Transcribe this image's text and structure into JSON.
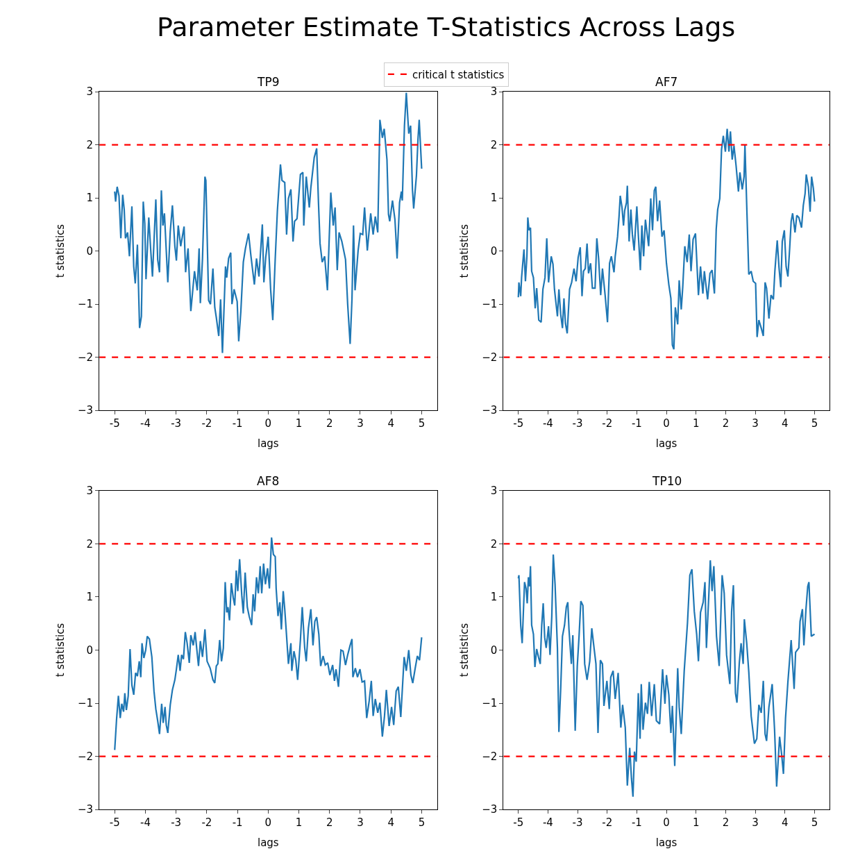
{
  "chart_data": [
    {
      "type": "line",
      "title": "TP9",
      "xlabel": "lags",
      "ylabel": "t statistics",
      "annotations": [
        "Parameter Estimate T-Statistics Across Lags"
      ],
      "legend": "top",
      "line_style": "solid",
      "xlim": [
        -5.5,
        5.5
      ],
      "ylim": [
        -3,
        3
      ],
      "xticks": [
        {
          "value": -5,
          "label": "-5"
        },
        {
          "value": -4,
          "label": "-4"
        },
        {
          "value": -3,
          "label": "-3"
        },
        {
          "value": -2,
          "label": "-2"
        },
        {
          "value": -1,
          "label": "-1"
        },
        0,
        1,
        2,
        3,
        4,
        5
      ],
      "yticks": [
        {
          "value": -3,
          "label": "−3"
        },
        {
          "value": -2,
          "label": "−2"
        },
        {
          "value": -1,
          "label": "−1"
        },
        0,
        1,
        2,
        3
      ],
      "ref_lines": [
        {
          "axis": "y",
          "value": 2,
          "label": "critical t statistics",
          "color": "#ff0000",
          "line_style": "dashed"
        },
        {
          "axis": "y",
          "value": -2,
          "color": "#ff0000",
          "line_style": "dashed"
        }
      ],
      "series": [
        {
          "color": "#1f77b4",
          "x": [
            -5.0,
            -4.97,
            -4.92,
            -4.86,
            -4.8,
            -4.74,
            -4.69,
            -4.65,
            -4.58,
            -4.52,
            -4.44,
            -4.38,
            -4.33,
            -4.26,
            -4.19,
            -4.13,
            -4.07,
            -4.02,
            -3.98,
            -3.89,
            -3.83,
            -3.77,
            -3.66,
            -3.6,
            -3.54,
            -3.48,
            -3.43,
            -3.38,
            -3.27,
            -3.19,
            -3.12,
            -3.04,
            -2.99,
            -2.93,
            -2.85,
            -2.74,
            -2.69,
            -2.61,
            -2.52,
            -2.4,
            -2.31,
            -2.25,
            -2.21,
            -2.14,
            -2.06,
            -2.03,
            -1.94,
            -1.88,
            -1.8,
            -1.74,
            -1.69,
            -1.61,
            -1.55,
            -1.49,
            -1.39,
            -1.35,
            -1.29,
            -1.22,
            -1.18,
            -1.11,
            -1.01,
            -0.96,
            -0.89,
            -0.81,
            -0.74,
            -0.64,
            -0.56,
            -0.45,
            -0.38,
            -0.3,
            -0.19,
            -0.14,
            -0.08,
            0.0,
            0.08,
            0.15,
            0.23,
            0.3,
            0.4,
            0.45,
            0.54,
            0.6,
            0.66,
            0.74,
            0.81,
            0.86,
            0.94,
            1.05,
            1.13,
            1.16,
            1.24,
            1.34,
            1.39,
            1.5,
            1.58,
            1.64,
            1.69,
            1.76,
            1.84,
            1.93,
            2.04,
            2.12,
            2.18,
            2.25,
            2.31,
            2.4,
            2.52,
            2.59,
            2.67,
            2.73,
            2.78,
            2.83,
            2.93,
            3.0,
            3.08,
            3.14,
            3.23,
            3.34,
            3.42,
            3.49,
            3.57,
            3.64,
            3.72,
            3.78,
            3.87,
            3.92,
            3.96,
            4.05,
            4.13,
            4.2,
            4.28,
            4.34,
            4.37,
            4.44,
            4.5,
            4.58,
            4.64,
            4.7,
            4.74,
            4.83,
            4.88,
            4.92,
            5.0
          ],
          "values": [
            1.12,
            0.93,
            1.21,
            1.04,
            0.24,
            1.06,
            0.78,
            0.24,
            0.35,
            -0.1,
            0.84,
            -0.29,
            -0.61,
            0.12,
            -1.45,
            -1.23,
            0.93,
            0.52,
            -0.53,
            0.63,
            0.05,
            -0.48,
            0.97,
            -0.16,
            -0.4,
            1.14,
            0.48,
            0.71,
            -0.59,
            0.37,
            0.86,
            0.09,
            -0.18,
            0.48,
            0.09,
            0.46,
            -0.4,
            0.05,
            -1.13,
            -0.38,
            -0.74,
            0.05,
            -0.98,
            -0.14,
            1.4,
            1.33,
            -0.93,
            -1.0,
            -0.33,
            -1.06,
            -1.25,
            -1.6,
            -0.91,
            -1.92,
            -0.29,
            -0.5,
            -0.14,
            -0.03,
            -1.0,
            -0.72,
            -0.95,
            -1.7,
            -1.13,
            -0.21,
            0.05,
            0.33,
            -0.1,
            -0.63,
            -0.14,
            -0.48,
            0.5,
            -0.59,
            -0.12,
            0.27,
            -0.72,
            -1.3,
            -0.14,
            0.76,
            1.63,
            1.33,
            1.29,
            0.31,
            0.99,
            1.16,
            0.18,
            0.56,
            0.61,
            1.44,
            1.48,
            0.48,
            1.4,
            0.82,
            1.19,
            1.76,
            1.93,
            0.89,
            0.14,
            -0.21,
            -0.1,
            -0.74,
            1.1,
            0.48,
            0.82,
            -0.36,
            0.35,
            0.18,
            -0.16,
            -1.0,
            -1.75,
            -0.91,
            0.48,
            -0.74,
            0.01,
            0.33,
            0.31,
            0.82,
            0.01,
            0.71,
            0.31,
            0.65,
            0.35,
            2.47,
            2.13,
            2.3,
            1.72,
            0.69,
            0.56,
            0.95,
            0.59,
            -0.14,
            0.91,
            1.12,
            0.95,
            2.36,
            2.98,
            2.21,
            2.36,
            1.16,
            0.8,
            1.42,
            2.1,
            2.47,
            1.55
          ]
        }
      ]
    },
    {
      "type": "line",
      "title": "AF7",
      "xlabel": "lags",
      "ylabel": "t statistics",
      "line_style": "solid",
      "xlim": [
        -5.5,
        5.5
      ],
      "ylim": [
        -3,
        3
      ],
      "xticks": [
        {
          "value": -5,
          "label": "-5"
        },
        {
          "value": -4,
          "label": "-4"
        },
        {
          "value": -3,
          "label": "-3"
        },
        {
          "value": -2,
          "label": "-2"
        },
        {
          "value": -1,
          "label": "-1"
        },
        0,
        1,
        2,
        3,
        4,
        5
      ],
      "yticks": [
        {
          "value": -3,
          "label": "−3"
        },
        {
          "value": -2,
          "label": "−2"
        },
        {
          "value": -1,
          "label": "−1"
        },
        0,
        1,
        2,
        3
      ],
      "ref_lines": [
        {
          "axis": "y",
          "value": 2,
          "color": "#ff0000",
          "line_style": "dashed"
        },
        {
          "axis": "y",
          "value": -2,
          "color": "#ff0000",
          "line_style": "dashed"
        }
      ],
      "series": [
        {
          "color": "#1f77b4",
          "x": [
            -5.0,
            -4.98,
            -4.92,
            -4.89,
            -4.85,
            -4.81,
            -4.76,
            -4.71,
            -4.68,
            -4.64,
            -4.59,
            -4.55,
            -4.49,
            -4.43,
            -4.38,
            -4.31,
            -4.23,
            -4.17,
            -4.1,
            -4.04,
            -3.98,
            -3.89,
            -3.83,
            -3.78,
            -3.68,
            -3.63,
            -3.57,
            -3.51,
            -3.46,
            -3.41,
            -3.35,
            -3.27,
            -3.2,
            -3.12,
            -3.05,
            -2.98,
            -2.91,
            -2.85,
            -2.8,
            -2.74,
            -2.68,
            -2.63,
            -2.56,
            -2.5,
            -2.41,
            -2.35,
            -2.29,
            -2.22,
            -2.16,
            -2.07,
            -1.99,
            -1.92,
            -1.86,
            -1.77,
            -1.73,
            -1.65,
            -1.6,
            -1.56,
            -1.5,
            -1.45,
            -1.41,
            -1.35,
            -1.32,
            -1.26,
            -1.2,
            -1.15,
            -1.09,
            -1.0,
            -0.95,
            -0.88,
            -0.83,
            -0.77,
            -0.71,
            -0.6,
            -0.53,
            -0.47,
            -0.41,
            -0.36,
            -0.3,
            -0.23,
            -0.15,
            -0.08,
            0.0,
            0.08,
            0.15,
            0.2,
            0.25,
            0.3,
            0.38,
            0.43,
            0.5,
            0.55,
            0.62,
            0.7,
            0.77,
            0.83,
            0.9,
            0.98,
            1.08,
            1.15,
            1.23,
            1.28,
            1.39,
            1.47,
            1.54,
            1.62,
            1.68,
            1.73,
            1.8,
            1.86,
            1.92,
            1.99,
            2.05,
            2.11,
            2.16,
            2.22,
            2.28,
            2.35,
            2.43,
            2.48,
            2.56,
            2.62,
            2.65,
            2.71,
            2.78,
            2.86,
            2.93,
            3.01,
            3.06,
            3.12,
            3.21,
            3.27,
            3.33,
            3.38,
            3.46,
            3.53,
            3.61,
            3.66,
            3.74,
            3.8,
            3.86,
            3.91,
            3.98,
            4.04,
            4.1,
            4.16,
            4.21,
            4.26,
            4.34,
            4.4,
            4.47,
            4.56,
            4.62,
            4.68,
            4.72,
            4.79,
            4.85,
            4.9,
            4.96,
            5.0
          ],
          "values": [
            -0.87,
            -0.59,
            -0.85,
            -0.5,
            -0.23,
            0.03,
            -0.57,
            -0.1,
            0.63,
            0.39,
            0.44,
            -0.38,
            -0.5,
            -1.08,
            -0.7,
            -1.3,
            -1.34,
            -0.72,
            -0.5,
            0.24,
            -0.59,
            -0.1,
            -0.25,
            -0.72,
            -1.23,
            -0.72,
            -1.19,
            -1.45,
            -0.89,
            -1.36,
            -1.55,
            -0.72,
            -0.59,
            -0.33,
            -0.57,
            -0.12,
            0.07,
            -0.85,
            -0.38,
            -0.33,
            0.14,
            -0.42,
            -0.23,
            -0.7,
            -0.7,
            0.24,
            -0.14,
            -0.83,
            -0.33,
            -0.83,
            -1.34,
            -0.23,
            -0.1,
            -0.4,
            -0.1,
            0.27,
            0.65,
            1.04,
            0.82,
            0.48,
            0.76,
            0.91,
            1.23,
            0.18,
            0.78,
            0.31,
            0.01,
            0.84,
            0.31,
            -0.36,
            0.48,
            -0.1,
            0.59,
            0.09,
            0.99,
            0.39,
            1.14,
            1.21,
            0.56,
            0.95,
            0.27,
            0.39,
            -0.23,
            -0.63,
            -0.89,
            -1.77,
            -1.85,
            -1.06,
            -1.38,
            -0.55,
            -1.1,
            -0.68,
            0.09,
            -0.21,
            0.31,
            -0.38,
            0.22,
            0.33,
            -0.83,
            -0.29,
            -0.8,
            -0.38,
            -0.91,
            -0.42,
            -0.36,
            -0.8,
            0.41,
            0.78,
            0.99,
            1.91,
            2.17,
            1.87,
            2.3,
            1.87,
            2.25,
            1.72,
            1.98,
            1.61,
            1.12,
            1.48,
            1.16,
            1.4,
            2.0,
            0.86,
            -0.44,
            -0.38,
            -0.57,
            -0.61,
            -1.62,
            -1.3,
            -1.47,
            -1.6,
            -0.59,
            -0.7,
            -1.27,
            -0.83,
            -0.91,
            -0.38,
            0.2,
            -0.31,
            -0.68,
            0.18,
            0.39,
            -0.29,
            -0.48,
            0.05,
            0.56,
            0.71,
            0.35,
            0.67,
            0.63,
            0.44,
            0.86,
            1.08,
            1.44,
            1.21,
            0.74,
            1.4,
            1.18,
            0.93
          ]
        }
      ]
    },
    {
      "type": "line",
      "title": "AF8",
      "xlabel": "lags",
      "ylabel": "t statistics",
      "line_style": "solid",
      "xlim": [
        -5.5,
        5.5
      ],
      "ylim": [
        -3,
        3
      ],
      "xticks": [
        {
          "value": -5,
          "label": "-5"
        },
        {
          "value": -4,
          "label": "-4"
        },
        {
          "value": -3,
          "label": "-3"
        },
        {
          "value": -2,
          "label": "-2"
        },
        {
          "value": -1,
          "label": "-1"
        },
        0,
        1,
        2,
        3,
        4,
        5
      ],
      "yticks": [
        {
          "value": -3,
          "label": "−3"
        },
        {
          "value": -2,
          "label": "−2"
        },
        {
          "value": -1,
          "label": "−1"
        },
        0,
        1,
        2,
        3
      ],
      "ref_lines": [
        {
          "axis": "y",
          "value": 2,
          "color": "#ff0000",
          "line_style": "dashed"
        },
        {
          "axis": "y",
          "value": -2,
          "color": "#ff0000",
          "line_style": "dashed"
        }
      ],
      "series": [
        {
          "color": "#1f77b4",
          "x": [
            -5.0,
            -4.94,
            -4.88,
            -4.82,
            -4.77,
            -4.71,
            -4.67,
            -4.62,
            -4.56,
            -4.5,
            -4.44,
            -4.38,
            -4.32,
            -4.26,
            -4.2,
            -4.15,
            -4.11,
            -4.05,
            -3.99,
            -3.94,
            -3.87,
            -3.79,
            -3.72,
            -3.66,
            -3.6,
            -3.54,
            -3.47,
            -3.42,
            -3.36,
            -3.32,
            -3.27,
            -3.19,
            -3.12,
            -3.04,
            -2.99,
            -2.93,
            -2.87,
            -2.82,
            -2.76,
            -2.7,
            -2.64,
            -2.57,
            -2.52,
            -2.44,
            -2.38,
            -2.33,
            -2.27,
            -2.21,
            -2.14,
            -2.06,
            -1.99,
            -1.89,
            -1.8,
            -1.74,
            -1.69,
            -1.64,
            -1.58,
            -1.52,
            -1.46,
            -1.4,
            -1.35,
            -1.31,
            -1.26,
            -1.2,
            -1.14,
            -1.09,
            -1.04,
            -0.99,
            -0.93,
            -0.86,
            -0.81,
            -0.75,
            -0.68,
            -0.62,
            -0.54,
            -0.49,
            -0.44,
            -0.38,
            -0.32,
            -0.26,
            -0.21,
            -0.15,
            -0.09,
            -0.02,
            0.04,
            0.11,
            0.17,
            0.23,
            0.26,
            0.32,
            0.38,
            0.43,
            0.49,
            0.54,
            0.6,
            0.66,
            0.74,
            0.77,
            0.84,
            0.9,
            0.96,
            1.05,
            1.11,
            1.19,
            1.24,
            1.31,
            1.39,
            1.46,
            1.52,
            1.58,
            1.65,
            1.71,
            1.79,
            1.86,
            1.94,
            2.01,
            2.1,
            2.16,
            2.21,
            2.29,
            2.37,
            2.44,
            2.52,
            2.59,
            2.67,
            2.73,
            2.76,
            2.84,
            2.91,
            2.99,
            3.06,
            3.14,
            3.21,
            3.29,
            3.36,
            3.42,
            3.49,
            3.57,
            3.64,
            3.72,
            3.79,
            3.85,
            3.94,
            4.02,
            4.09,
            4.17,
            4.24,
            4.32,
            4.43,
            4.5,
            4.58,
            4.65,
            4.71,
            4.79,
            4.86,
            4.93,
            5.0
          ],
          "values": [
            -1.88,
            -1.31,
            -0.86,
            -1.28,
            -1.01,
            -1.16,
            -0.81,
            -1.13,
            -0.86,
            0.02,
            -0.66,
            -0.84,
            -0.43,
            -0.49,
            -0.21,
            -0.51,
            0.13,
            -0.15,
            0.0,
            0.26,
            0.21,
            -0.13,
            -0.77,
            -1.11,
            -1.33,
            -1.58,
            -1.01,
            -1.37,
            -1.07,
            -1.41,
            -1.56,
            -1.03,
            -0.75,
            -0.56,
            -0.36,
            -0.09,
            -0.39,
            -0.09,
            -0.17,
            0.34,
            0.13,
            -0.24,
            0.28,
            0.09,
            0.34,
            0.04,
            -0.3,
            0.17,
            -0.13,
            0.39,
            -0.21,
            -0.34,
            -0.56,
            -0.62,
            -0.3,
            -0.26,
            0.19,
            -0.21,
            0.04,
            1.28,
            0.71,
            0.81,
            0.56,
            1.26,
            0.99,
            0.84,
            1.5,
            1.11,
            1.71,
            1.03,
            0.69,
            1.46,
            0.81,
            0.64,
            0.47,
            1.05,
            0.73,
            1.37,
            1.07,
            1.58,
            1.07,
            1.63,
            1.24,
            1.54,
            1.16,
            2.12,
            1.8,
            1.76,
            1.16,
            0.64,
            0.9,
            0.39,
            1.11,
            0.77,
            0.26,
            -0.26,
            0.13,
            -0.39,
            -0.02,
            -0.19,
            -0.56,
            0.19,
            0.81,
            0.04,
            -0.21,
            0.41,
            0.77,
            0.09,
            0.54,
            0.62,
            0.3,
            -0.3,
            -0.11,
            -0.28,
            -0.24,
            -0.47,
            -0.28,
            -0.58,
            -0.36,
            -0.69,
            0.0,
            -0.02,
            -0.28,
            -0.09,
            0.09,
            0.21,
            -0.51,
            -0.34,
            -0.51,
            -0.36,
            -0.6,
            -0.58,
            -1.28,
            -0.96,
            -0.58,
            -1.24,
            -0.92,
            -1.18,
            -0.99,
            -1.63,
            -1.24,
            -0.75,
            -1.43,
            -1.07,
            -1.41,
            -0.77,
            -0.69,
            -1.26,
            -0.13,
            -0.39,
            0.0,
            -0.47,
            -0.62,
            -0.34,
            -0.11,
            -0.19,
            0.24
          ]
        }
      ]
    },
    {
      "type": "line",
      "title": "TP10",
      "xlabel": "lags",
      "ylabel": "t statistics",
      "line_style": "solid",
      "xlim": [
        -5.5,
        5.5
      ],
      "ylim": [
        -3,
        3
      ],
      "xticks": [
        {
          "value": -5,
          "label": "-5"
        },
        {
          "value": -4,
          "label": "-4"
        },
        {
          "value": -3,
          "label": "-3"
        },
        {
          "value": -2,
          "label": "-2"
        },
        {
          "value": -1,
          "label": "-1"
        },
        0,
        1,
        2,
        3,
        4,
        5
      ],
      "yticks": [
        {
          "value": -3,
          "label": "−3"
        },
        {
          "value": -2,
          "label": "−2"
        },
        {
          "value": -1,
          "label": "−1"
        },
        0,
        1,
        2,
        3
      ],
      "ref_lines": [
        {
          "axis": "y",
          "value": 2,
          "color": "#ff0000",
          "line_style": "dashed"
        },
        {
          "axis": "y",
          "value": -2,
          "color": "#ff0000",
          "line_style": "dashed"
        }
      ],
      "series": [
        {
          "color": "#1f77b4",
          "x": [
            -5.0,
            -4.98,
            -4.92,
            -4.87,
            -4.79,
            -4.74,
            -4.7,
            -4.66,
            -4.62,
            -4.59,
            -4.55,
            -4.49,
            -4.44,
            -4.38,
            -4.32,
            -4.26,
            -4.21,
            -4.16,
            -4.11,
            -4.06,
            -3.98,
            -3.93,
            -3.87,
            -3.82,
            -3.76,
            -3.68,
            -3.63,
            -3.57,
            -3.51,
            -3.44,
            -3.38,
            -3.33,
            -3.29,
            -3.21,
            -3.16,
            -3.08,
            -3.01,
            -2.95,
            -2.89,
            -2.82,
            -2.76,
            -2.68,
            -2.59,
            -2.52,
            -2.44,
            -2.38,
            -2.31,
            -2.23,
            -2.16,
            -2.11,
            -2.01,
            -1.93,
            -1.88,
            -1.8,
            -1.73,
            -1.63,
            -1.54,
            -1.48,
            -1.39,
            -1.32,
            -1.24,
            -1.18,
            -1.13,
            -1.08,
            -1.02,
            -0.95,
            -0.89,
            -0.85,
            -0.79,
            -0.71,
            -0.64,
            -0.58,
            -0.5,
            -0.41,
            -0.34,
            -0.23,
            -0.13,
            -0.05,
            0.0,
            0.08,
            0.15,
            0.2,
            0.28,
            0.38,
            0.43,
            0.5,
            0.6,
            0.71,
            0.79,
            0.86,
            0.94,
            1.02,
            1.08,
            1.15,
            1.24,
            1.3,
            1.35,
            1.43,
            1.48,
            1.54,
            1.6,
            1.69,
            1.78,
            1.88,
            1.95,
            2.03,
            2.14,
            2.2,
            2.26,
            2.33,
            2.38,
            2.46,
            2.52,
            2.59,
            2.63,
            2.71,
            2.78,
            2.86,
            2.97,
            3.05,
            3.12,
            3.2,
            3.27,
            3.33,
            3.38,
            3.46,
            3.57,
            3.65,
            3.72,
            3.82,
            3.89,
            3.95,
            4.02,
            4.1,
            4.21,
            4.31,
            4.36,
            4.47,
            4.51,
            4.59,
            4.64,
            4.71,
            4.77,
            4.81,
            4.89,
            5.0
          ],
          "values": [
            1.35,
            1.41,
            0.47,
            0.13,
            1.28,
            1.16,
            0.88,
            1.37,
            1.2,
            1.58,
            0.47,
            0.3,
            -0.32,
            0.02,
            -0.13,
            -0.26,
            0.47,
            0.88,
            0.24,
            0.04,
            0.45,
            -0.09,
            0.64,
            1.8,
            1.24,
            0.04,
            -1.54,
            -0.73,
            0.26,
            0.47,
            0.81,
            0.9,
            0.39,
            -0.26,
            0.28,
            -1.52,
            -0.3,
            0.26,
            0.92,
            0.84,
            -0.26,
            -0.56,
            -0.21,
            0.41,
            0.02,
            -0.26,
            -1.56,
            -0.19,
            -0.26,
            -1.05,
            -0.58,
            -1.11,
            -0.51,
            -0.39,
            -0.92,
            -0.43,
            -1.46,
            -1.03,
            -1.46,
            -2.55,
            -1.84,
            -2.42,
            -2.76,
            -1.91,
            -2.1,
            -0.81,
            -1.67,
            -0.64,
            -1.5,
            -0.99,
            -1.2,
            -0.6,
            -1.24,
            -0.64,
            -1.33,
            -1.39,
            -0.36,
            -1.01,
            -0.47,
            -0.84,
            -1.56,
            -1.05,
            -2.18,
            -0.34,
            -1.07,
            -1.58,
            -0.39,
            0.51,
            1.41,
            1.52,
            0.73,
            0.3,
            -0.21,
            0.71,
            0.9,
            1.28,
            0.04,
            1.03,
            1.69,
            1.11,
            1.58,
            0.26,
            -0.3,
            1.41,
            1.07,
            -0.09,
            -0.64,
            0.73,
            1.22,
            -0.81,
            -0.99,
            -0.24,
            0.13,
            -0.26,
            0.58,
            0.13,
            -0.41,
            -1.24,
            -1.76,
            -1.67,
            -1.03,
            -1.18,
            -0.58,
            -1.58,
            -1.71,
            -1.07,
            -0.64,
            -1.5,
            -2.57,
            -1.63,
            -1.97,
            -2.33,
            -1.28,
            -0.6,
            0.19,
            -0.73,
            -0.04,
            0.04,
            0.54,
            0.77,
            0.09,
            0.77,
            1.2,
            1.28,
            0.26,
            0.3
          ]
        }
      ]
    }
  ]
}
